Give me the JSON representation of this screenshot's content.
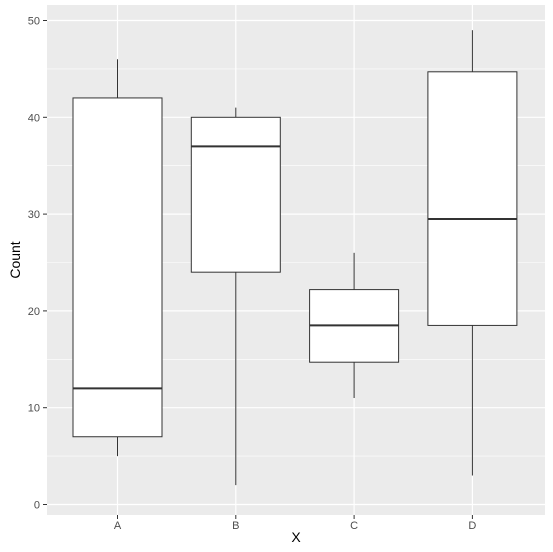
{
  "chart_data": {
    "type": "boxplot",
    "title": "",
    "xlabel": "X",
    "ylabel": "Count",
    "ylim": [
      0,
      50
    ],
    "yticks": [
      0,
      10,
      20,
      30,
      40,
      50
    ],
    "grid": true,
    "legend": "none",
    "categories": [
      "A",
      "B",
      "C",
      "D"
    ],
    "boxes": [
      {
        "category": "A",
        "min": 5,
        "q1": 7,
        "median": 12,
        "q3": 42,
        "max": 46
      },
      {
        "category": "B",
        "min": 2,
        "q1": 24,
        "median": 37,
        "q3": 40,
        "max": 41
      },
      {
        "category": "C",
        "min": 11,
        "q1": 14.7,
        "median": 18.5,
        "q3": 22.2,
        "max": 26
      },
      {
        "category": "D",
        "min": 3,
        "q1": 18.5,
        "median": 29.5,
        "q3": 44.7,
        "max": 49
      }
    ],
    "colors": {
      "panel_background": "#ebebeb",
      "grid_major": "#ffffff",
      "box_fill": "#ffffff",
      "box_stroke": "#333333",
      "tick_text": "#4d4d4d"
    }
  }
}
